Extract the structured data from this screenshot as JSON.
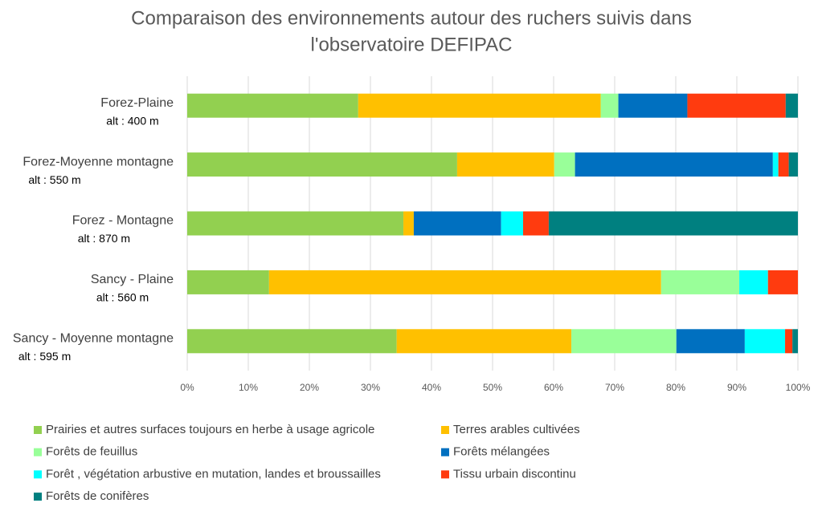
{
  "chart_data": {
    "type": "stacked_bar_horizontal",
    "title": [
      "Comparaison des environnements autour des ruchers suivis dans",
      "l'observatoire DEFIPAC"
    ],
    "categories": [
      "Forez-Plaine",
      "Forez-Moyenne montagne",
      "Forez - Montagne",
      "Sancy - Plaine",
      "Sancy - Moyenne montagne"
    ],
    "category_sublabels": [
      "alt : 400 m",
      "alt : 550 m",
      "alt : 870 m",
      "alt : 560 m",
      "alt : 595 m"
    ],
    "series": [
      {
        "name": "Prairies et autres surfaces toujours en herbe à usage agricole",
        "color": "#92d050",
        "values": [
          28.0,
          44.2,
          35.4,
          13.4,
          34.3
        ]
      },
      {
        "name": "Terres arables cultivées",
        "color": "#ffc000",
        "values": [
          39.7,
          15.9,
          1.7,
          64.2,
          28.6
        ]
      },
      {
        "name": "Forêts de feuillus",
        "color": "#99ff99",
        "values": [
          2.9,
          3.4,
          0,
          12.8,
          17.2
        ]
      },
      {
        "name": "Forêts mélangées",
        "color": "#0070c0",
        "values": [
          11.3,
          32.4,
          14.3,
          0,
          11.2
        ]
      },
      {
        "name": "Forêt , végétation arbustive en mutation, landes et broussailles",
        "color": "#00ffff",
        "values": [
          0,
          0.9,
          3.6,
          4.7,
          6.6
        ]
      },
      {
        "name": "Tissu urbain discontinu",
        "color": "#ff3b0f",
        "values": [
          16.1,
          1.7,
          4.2,
          4.9,
          1.2
        ]
      },
      {
        "name": "Forêts de conifères",
        "color": "#008080",
        "values": [
          2.0,
          1.5,
          40.8,
          0,
          0.9
        ]
      }
    ],
    "xlim": [
      0,
      100
    ],
    "xticks": [
      {
        "value": 0,
        "label": "0%"
      },
      {
        "value": 10,
        "label": "10%"
      },
      {
        "value": 20,
        "label": "20%"
      },
      {
        "value": 30,
        "label": "30%"
      },
      {
        "value": 40,
        "label": "40%"
      },
      {
        "value": 50,
        "label": "50%"
      },
      {
        "value": 60,
        "label": "60%"
      },
      {
        "value": 70,
        "label": "70%"
      },
      {
        "value": 80,
        "label": "80%"
      },
      {
        "value": 90,
        "label": "90%"
      },
      {
        "value": 100,
        "label": "100%"
      }
    ],
    "grid": true
  }
}
